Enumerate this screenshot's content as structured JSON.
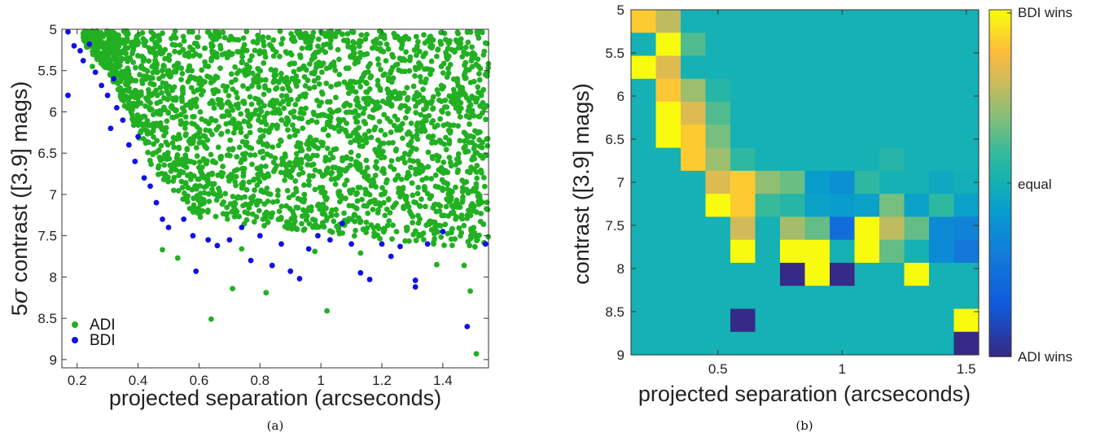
{
  "chart_data": [
    {
      "type": "scatter",
      "panel_label": "(a)",
      "xlabel": "projected separation (arcseconds)",
      "ylabel_prefix": "5",
      "ylabel_sigma": "σ",
      "ylabel_suffix": " contrast ([3.9] mags)",
      "xlim": [
        0.15,
        1.55
      ],
      "ylim": [
        5,
        9.1
      ],
      "y_reversed": true,
      "xticks": [
        0.2,
        0.4,
        0.6,
        0.8,
        1,
        1.2,
        1.4
      ],
      "xtick_labels": [
        "0.2",
        "0.4",
        "0.6",
        "0.8",
        "1",
        "1.2",
        "1.4"
      ],
      "yticks": [
        5,
        5.5,
        6,
        6.5,
        7,
        7.5,
        8,
        8.5,
        9
      ],
      "ytick_labels": [
        "5",
        "5.5",
        "6",
        "6.5",
        "7",
        "7.5",
        "8",
        "8.5",
        "9"
      ],
      "legend_position": "bottom-left",
      "series": [
        {
          "name": "ADI",
          "color": "#22b022",
          "points": [
            [
              0.48,
              7.67
            ],
            [
              0.64,
              8.51
            ],
            [
              0.71,
              8.14
            ],
            [
              0.82,
              8.19
            ],
            [
              1.02,
              8.41
            ],
            [
              1.49,
              8.17
            ],
            [
              1.51,
              8.93
            ],
            [
              1.47,
              7.86
            ],
            [
              1.38,
              7.85
            ],
            [
              1.13,
              7.71
            ],
            [
              0.98,
              7.69
            ],
            [
              0.74,
              7.66
            ],
            [
              0.53,
              7.77
            ],
            [
              0.25,
              5.45
            ],
            [
              0.22,
              5.05
            ],
            [
              0.36,
              5.05
            ],
            [
              0.95,
              5.05
            ],
            [
              1.2,
              5.05
            ],
            [
              1.45,
              5.05
            ]
          ]
        },
        {
          "name": "BDI",
          "color": "#1010e6",
          "points": [
            [
              0.17,
              5.8
            ],
            [
              0.17,
              5.03
            ],
            [
              0.19,
              5.2
            ],
            [
              0.21,
              5.26
            ],
            [
              0.22,
              5.38
            ],
            [
              0.24,
              5.18
            ],
            [
              0.26,
              5.52
            ],
            [
              0.28,
              5.68
            ],
            [
              0.3,
              5.8
            ],
            [
              0.32,
              5.6
            ],
            [
              0.31,
              6.2
            ],
            [
              0.33,
              5.95
            ],
            [
              0.35,
              6.1
            ],
            [
              0.37,
              6.4
            ],
            [
              0.39,
              6.6
            ],
            [
              0.4,
              6.3
            ],
            [
              0.42,
              6.8
            ],
            [
              0.44,
              6.9
            ],
            [
              0.46,
              7.1
            ],
            [
              0.48,
              7.3
            ],
            [
              0.5,
              7.4
            ],
            [
              0.55,
              7.3
            ],
            [
              0.58,
              7.5
            ],
            [
              0.59,
              7.93
            ],
            [
              0.63,
              7.55
            ],
            [
              0.66,
              7.62
            ],
            [
              0.7,
              7.55
            ],
            [
              0.74,
              7.4
            ],
            [
              0.77,
              7.8
            ],
            [
              0.8,
              7.5
            ],
            [
              0.84,
              7.86
            ],
            [
              0.87,
              7.6
            ],
            [
              0.9,
              7.93
            ],
            [
              0.93,
              8.02
            ],
            [
              0.96,
              7.66
            ],
            [
              0.99,
              7.5
            ],
            [
              1.03,
              7.55
            ],
            [
              1.07,
              7.35
            ],
            [
              1.1,
              7.6
            ],
            [
              1.13,
              7.95
            ],
            [
              1.16,
              8.03
            ],
            [
              1.2,
              7.6
            ],
            [
              1.23,
              7.75
            ],
            [
              1.26,
              7.63
            ],
            [
              1.31,
              8.04
            ],
            [
              1.31,
              8.12
            ],
            [
              1.35,
              7.6
            ],
            [
              1.4,
              7.45
            ],
            [
              1.48,
              8.6
            ],
            [
              1.54,
              7.6
            ]
          ]
        }
      ]
    },
    {
      "type": "heatmap",
      "panel_label": "(b)",
      "xlabel": "projected separation (arcseconds)",
      "ylabel": "contrast ([3.9] mags)",
      "x_edges": [
        0.15,
        1.55
      ],
      "y_edges": [
        5,
        9
      ],
      "xticks": [
        0.5,
        1,
        1.5
      ],
      "xtick_labels": [
        "0.5",
        "1",
        "1.5"
      ],
      "yticks": [
        5,
        5.5,
        6,
        6.5,
        7,
        7.5,
        8,
        8.5,
        9
      ],
      "ytick_labels": [
        "5",
        "5.5",
        "6",
        "6.5",
        "7",
        "7.5",
        "8",
        "8.5",
        "9"
      ],
      "colorbar": {
        "labels": [
          "BDI wins",
          "equal",
          "ADI wins"
        ],
        "range": [
          -1,
          1
        ]
      },
      "values": [
        [
          0.82,
          0.55,
          0,
          0,
          0,
          0,
          0,
          0,
          0,
          0,
          0,
          0,
          0,
          0
        ],
        [
          0,
          1,
          0.25,
          0,
          0,
          0,
          0,
          0,
          0,
          0,
          0,
          0,
          0,
          0
        ],
        [
          1,
          0.65,
          0,
          0,
          0,
          0,
          0,
          0,
          0,
          0,
          0,
          0,
          0,
          0
        ],
        [
          0,
          0.8,
          0.45,
          0.1,
          0,
          0,
          0,
          0,
          0,
          0,
          0,
          0,
          0,
          0
        ],
        [
          0,
          1,
          0.65,
          0.25,
          0,
          0,
          0,
          0,
          0,
          0,
          0,
          0,
          0,
          0
        ],
        [
          0,
          1,
          0.82,
          0.35,
          0,
          0,
          0,
          0,
          0,
          0,
          0,
          0,
          0,
          0
        ],
        [
          0,
          0,
          0.82,
          0.45,
          0.15,
          0,
          0,
          0,
          0,
          0,
          0.1,
          0,
          0,
          0
        ],
        [
          0,
          0,
          0,
          0.65,
          0.82,
          0.42,
          0.32,
          -0.15,
          -0.25,
          0.15,
          0,
          0,
          -0.07,
          -0.02
        ],
        [
          0,
          0,
          0,
          1,
          0.82,
          0.18,
          0.1,
          -0.12,
          -0.15,
          -0.12,
          0.35,
          -0.12,
          0.15,
          -0.12
        ],
        [
          0,
          0,
          0,
          0,
          0.6,
          0,
          0.48,
          0.3,
          -0.55,
          1,
          0.55,
          0.3,
          -0.3,
          -0.35
        ],
        [
          0,
          0,
          0,
          0,
          1,
          0,
          1,
          1,
          0,
          1,
          0.3,
          0,
          -0.3,
          -0.45
        ],
        [
          0,
          0,
          0,
          0,
          0,
          0,
          -1,
          1,
          -1,
          0,
          0,
          1,
          0,
          0
        ],
        [
          0,
          0,
          0,
          0,
          0,
          0,
          0,
          0,
          0,
          0,
          0,
          0,
          0,
          0
        ],
        [
          0,
          0,
          0,
          0,
          -1,
          0,
          0,
          0,
          0,
          0,
          0,
          0,
          0,
          1
        ],
        [
          0,
          0,
          0,
          0,
          0,
          0,
          0,
          0,
          0,
          0,
          0,
          0,
          0,
          -1
        ]
      ]
    }
  ]
}
